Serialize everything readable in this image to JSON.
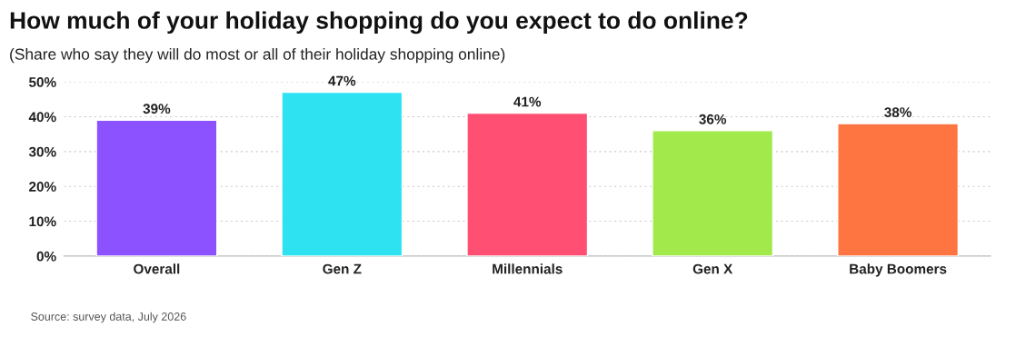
{
  "chart_data": {
    "type": "bar",
    "title": "How much of your holiday shopping do you expect to do online?",
    "subtitle": "(Share who say they will do most or all of their holiday shopping online)",
    "categories": [
      "Overall",
      "Gen Z",
      "Millennials",
      "Gen X",
      "Baby Boomers"
    ],
    "values": [
      39,
      47,
      41,
      36,
      38
    ],
    "value_labels": [
      "39%",
      "47%",
      "41%",
      "36%",
      "38%"
    ],
    "colors": [
      "#8c52ff",
      "#2ee2f2",
      "#ff5074",
      "#a2ea4c",
      "#ff7542"
    ],
    "ylim": [
      0,
      50
    ],
    "yticks": [
      {
        "value": 0,
        "label": "0%"
      },
      {
        "value": 10,
        "label": "10%"
      },
      {
        "value": 20,
        "label": "20%"
      },
      {
        "value": 30,
        "label": "30%"
      },
      {
        "value": 40,
        "label": "40%"
      },
      {
        "value": 50,
        "label": "50%"
      }
    ],
    "grid": "y",
    "annotations": [
      "Source: survey data, July 2026"
    ]
  }
}
